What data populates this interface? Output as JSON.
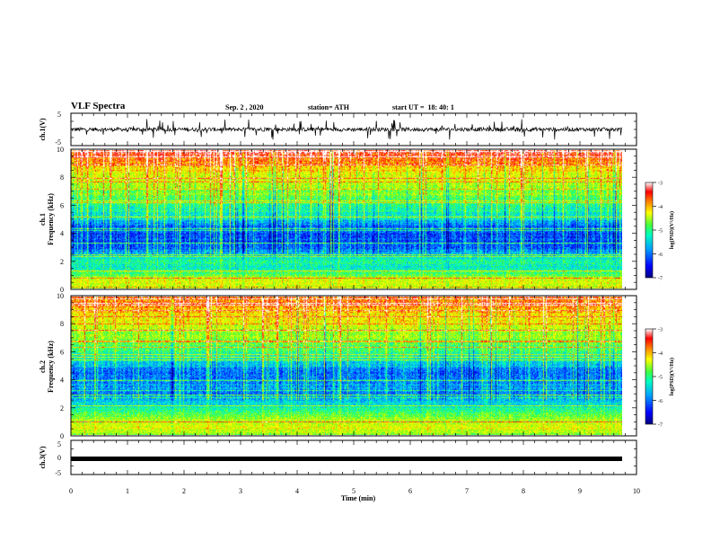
{
  "header": {
    "title": "VLF Spectra",
    "date": "Sep. 2 , 2020",
    "station": "station= ATH",
    "start": "start UT =  18: 40: 1"
  },
  "colors": {
    "spectro_ramp": [
      "#000080",
      "#0000ff",
      "#0060ff",
      "#00c0ff",
      "#00ffc0",
      "#40ff40",
      "#c0ff00",
      "#ffff00",
      "#ff8000",
      "#ff0000",
      "#ffffff"
    ],
    "trace": "#000000"
  },
  "chart_data": [
    {
      "type": "line",
      "name": "ch1-waveform",
      "ylabel": "ch.1(V)",
      "ylim": [
        -5,
        5
      ],
      "yticks": [
        "5",
        "-5"
      ],
      "xlim": [
        0,
        10
      ],
      "description_values": "noisy trace centered near 0 V, spikes up to about ±3 V"
    },
    {
      "type": "heatmap",
      "name": "ch1-spectrogram",
      "ylabel_line1": "ch.1",
      "ylabel_line2": "Frequency (kHz)",
      "ylim": [
        0,
        10
      ],
      "yticks": [
        "0",
        "2",
        "4",
        "6",
        "8",
        "10"
      ],
      "xlim": [
        0,
        9.8
      ],
      "colorbar": {
        "label": "log(PSD)(V²/Hz)",
        "range": [
          -7,
          -3
        ],
        "ticks": [
          "-3",
          "-4",
          "-5",
          "-6",
          "-7"
        ]
      },
      "profile_freq_khz": [
        0,
        0.5,
        1,
        1.5,
        2,
        2.5,
        3,
        3.5,
        4,
        4.5,
        5,
        5.5,
        6,
        6.5,
        7,
        7.5,
        8,
        8.5,
        9,
        9.5,
        10
      ],
      "profile_log_psd": [
        -4.6,
        -4.4,
        -5.0,
        -5.4,
        -5.3,
        -5.8,
        -6.2,
        -6.3,
        -6.2,
        -6.1,
        -5.6,
        -5.4,
        -5.2,
        -5.0,
        -4.8,
        -4.6,
        -4.4,
        -4.2,
        -3.9,
        -3.6,
        -3.3
      ]
    },
    {
      "type": "heatmap",
      "name": "ch2-spectrogram",
      "ylabel_line1": "ch.2",
      "ylabel_line2": "Frequency (kHz)",
      "ylim": [
        0,
        10
      ],
      "yticks": [
        "0",
        "2",
        "4",
        "6",
        "8",
        "10"
      ],
      "xlim": [
        0,
        9.8
      ],
      "colorbar": {
        "label": "log(PSD)(V²/Hz)",
        "range": [
          -7,
          -3
        ],
        "ticks": [
          "-3",
          "-4",
          "-5",
          "-6",
          "-7"
        ]
      },
      "profile_freq_khz": [
        0,
        0.5,
        1,
        1.5,
        2,
        2.5,
        3,
        3.5,
        4,
        4.5,
        5,
        5.5,
        6,
        6.5,
        7,
        7.5,
        8,
        8.5,
        9,
        9.5,
        10
      ],
      "profile_log_psd": [
        -4.8,
        -4.3,
        -4.6,
        -5.0,
        -5.4,
        -5.8,
        -6.0,
        -5.9,
        -6.0,
        -6.1,
        -5.8,
        -5.4,
        -5.2,
        -5.0,
        -4.8,
        -4.6,
        -4.4,
        -4.2,
        -4.0,
        -3.8,
        -3.6
      ]
    },
    {
      "type": "line",
      "name": "ch3-waveform",
      "ylabel": "ch.3(V)",
      "ylim": [
        -5,
        5
      ],
      "yticks": [
        "5",
        "0",
        "-5"
      ],
      "xlim": [
        0,
        10
      ],
      "xlabel": "Time (min)",
      "xticks": [
        "0",
        "1",
        "2",
        "3",
        "4",
        "5",
        "6",
        "7",
        "8",
        "9",
        "10"
      ],
      "description_values": "flat thick band near 0 V"
    }
  ]
}
